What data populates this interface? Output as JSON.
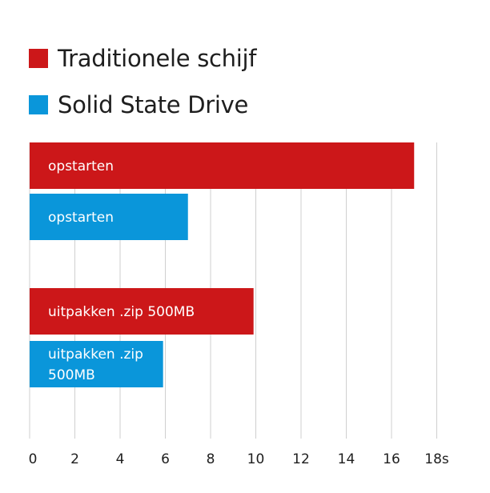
{
  "chart_data": {
    "type": "bar",
    "orientation": "horizontal",
    "legend_placement": "top-left",
    "grid": true,
    "xlim": [
      0,
      18
    ],
    "x_unit": "s",
    "x_ticks": [
      "0",
      "2",
      "4",
      "6",
      "8",
      "10",
      "12",
      "14",
      "16",
      "18s"
    ],
    "colors": {
      "Traditionele schijf": "#cc1719",
      "Solid State Drive": "#0a96da"
    },
    "series": [
      {
        "name": "Traditionele schijf"
      },
      {
        "name": "Solid State Drive"
      }
    ],
    "bars": [
      {
        "series": "Traditionele schijf",
        "label_lines": [
          "opstarten"
        ],
        "value": 17.0
      },
      {
        "series": "Solid State Drive",
        "label_lines": [
          "opstarten"
        ],
        "value": 7.0
      },
      {
        "series": "Traditionele schijf",
        "label_lines": [
          "uitpakken .zip 500MB"
        ],
        "value": 9.9
      },
      {
        "series": "Solid State Drive",
        "label_lines": [
          "uitpakken .zip",
          "500MB"
        ],
        "value": 5.9
      }
    ]
  }
}
